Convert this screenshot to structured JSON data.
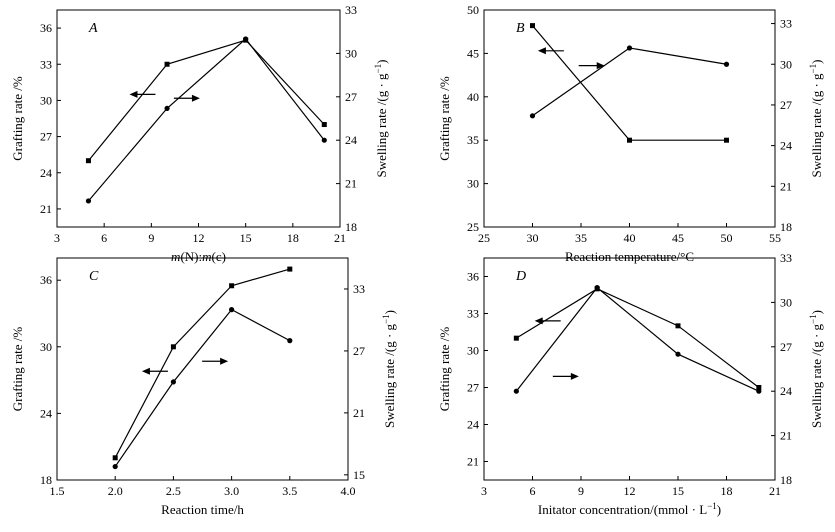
{
  "chart_data": [
    {
      "type": "line",
      "panel": "A",
      "xlabel": "m(N):m(c)",
      "ylabel_left": "Grafting rate /%",
      "ylabel_right": "Swelling rate /(g · g−1)",
      "xlim": [
        3,
        21
      ],
      "xticks": [
        3,
        6,
        9,
        12,
        15,
        18,
        21
      ],
      "ylim_left": [
        19.5,
        37.5
      ],
      "yticks_left": [
        21,
        24,
        27,
        30,
        33,
        36
      ],
      "ylim_right": [
        18,
        33
      ],
      "yticks_right": [
        18,
        21,
        24,
        27,
        30,
        33
      ],
      "series": [
        {
          "axis": "left",
          "marker": "square",
          "x": [
            5,
            10,
            15,
            20
          ],
          "y": [
            25.0,
            33.0,
            35.0,
            28.0
          ]
        },
        {
          "axis": "right",
          "marker": "circle",
          "x": [
            5,
            10,
            15,
            20
          ],
          "y": [
            19.8,
            26.2,
            31.0,
            24.0
          ]
        }
      ],
      "annotations": [
        {
          "direction": "left",
          "x": 8.5,
          "y": 30.5,
          "axis": "left"
        },
        {
          "direction": "right",
          "x": 11.2,
          "y": 26.9,
          "axis": "right"
        }
      ]
    },
    {
      "type": "line",
      "panel": "B",
      "xlabel": "Reaction temperature/°C",
      "ylabel_left": "Grafting rate /%",
      "ylabel_right": "Swelling rate /(g · g−1)",
      "xlim": [
        25,
        55
      ],
      "xticks": [
        25,
        30,
        35,
        40,
        45,
        50,
        55
      ],
      "ylim_left": [
        25,
        50
      ],
      "yticks_left": [
        25,
        30,
        35,
        40,
        45,
        50
      ],
      "ylim_right": [
        18,
        34
      ],
      "yticks_right": [
        18,
        21,
        24,
        27,
        30,
        33
      ],
      "series": [
        {
          "axis": "left",
          "marker": "square",
          "x": [
            30,
            40,
            50
          ],
          "y": [
            48.2,
            35.0,
            35.0
          ]
        },
        {
          "axis": "right",
          "marker": "circle",
          "x": [
            30,
            40,
            50
          ],
          "y": [
            26.2,
            31.2,
            30.0
          ]
        }
      ],
      "annotations": [
        {
          "direction": "left",
          "x": 32.0,
          "y": 45.3,
          "axis": "left"
        },
        {
          "direction": "right",
          "x": 36.0,
          "y": 29.9,
          "axis": "right"
        }
      ]
    },
    {
      "type": "line",
      "panel": "C",
      "xlabel": "Reaction time/h",
      "ylabel_left": "Grafting rate /%",
      "ylabel_right": "Swelling rate /(g · g−1)",
      "xlim": [
        1.5,
        4.0
      ],
      "xticks": [
        "1.5",
        "2.0",
        "2.5",
        "3.0",
        "3.5",
        "4.0"
      ],
      "ylim_left": [
        18,
        38
      ],
      "yticks_left": [
        18,
        24,
        30,
        36
      ],
      "ylim_right": [
        14.5,
        36
      ],
      "yticks_right": [
        15,
        21,
        27,
        33
      ],
      "series": [
        {
          "axis": "left",
          "marker": "square",
          "x": [
            2.0,
            2.5,
            3.0,
            3.5
          ],
          "y": [
            20.0,
            30.0,
            35.5,
            37.0
          ]
        },
        {
          "axis": "right",
          "marker": "circle",
          "x": [
            2.0,
            2.5,
            3.0,
            3.5
          ],
          "y": [
            15.8,
            24.0,
            31.0,
            28.0
          ]
        }
      ],
      "annotations": [
        {
          "direction": "left",
          "x": 2.35,
          "y": 27.8,
          "axis": "left"
        },
        {
          "direction": "right",
          "x": 2.85,
          "y": 26.0,
          "axis": "right"
        }
      ]
    },
    {
      "type": "line",
      "panel": "D",
      "xlabel": "Initator concentration/(mmol · L−1)",
      "ylabel_left": "Grafting rate /%",
      "ylabel_right": "Swelling rate /(g · g−1)",
      "xlim": [
        3,
        21
      ],
      "xticks": [
        3,
        6,
        9,
        12,
        15,
        18,
        21
      ],
      "ylim_left": [
        19.5,
        37.5
      ],
      "yticks_left": [
        21,
        24,
        27,
        30,
        33,
        36
      ],
      "ylim_right": [
        18,
        33
      ],
      "yticks_right": [
        18,
        21,
        24,
        27,
        30,
        33
      ],
      "series": [
        {
          "axis": "left",
          "marker": "square",
          "x": [
            5,
            10,
            15,
            20
          ],
          "y": [
            31.0,
            35.0,
            32.0,
            27.0
          ]
        },
        {
          "axis": "right",
          "marker": "circle",
          "x": [
            5,
            10,
            15,
            20
          ],
          "y": [
            24.0,
            31.0,
            26.5,
            24.0
          ]
        }
      ],
      "annotations": [
        {
          "direction": "left",
          "x": 7.0,
          "y": 32.4,
          "axis": "left"
        },
        {
          "direction": "right",
          "x": 8.0,
          "y": 25.0,
          "axis": "right"
        }
      ]
    }
  ]
}
